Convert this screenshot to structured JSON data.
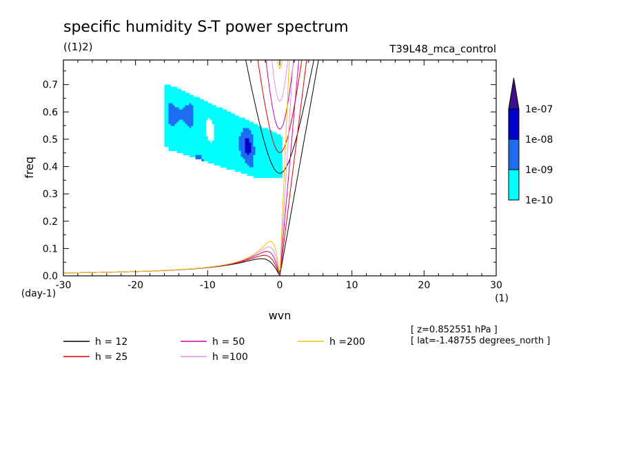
{
  "chart_data": {
    "type": "line",
    "title": "specific humidity S-T power spectrum",
    "subtitle_left": "((1)2)",
    "subtitle_right": "T39L48_mca_control",
    "xlabel": "wvn",
    "ylabel": "freq",
    "x_unit": "(1)",
    "y_unit": "(day-1)",
    "xlim": [
      -30,
      30
    ],
    "ylim": [
      0,
      0.79
    ],
    "x_ticks": [
      -30,
      -20,
      -10,
      0,
      10,
      20,
      30
    ],
    "x_tick_labels": [
      "-30",
      "-20",
      "-10",
      "0",
      "10",
      "20",
      "30"
    ],
    "y_ticks": [
      0,
      0.1,
      0.2,
      0.3,
      0.4,
      0.5,
      0.6,
      0.7
    ],
    "y_tick_labels": [
      "0.0",
      "0.1",
      "0.2",
      "0.3",
      "0.4",
      "0.5",
      "0.6",
      "0.7"
    ],
    "grid": false,
    "series": [
      {
        "name": "h = 12",
        "h": 12,
        "color": "#000000"
      },
      {
        "name": "h = 25",
        "h": 25,
        "color": "#e00000"
      },
      {
        "name": "h = 50",
        "h": 50,
        "color": "#cc00aa"
      },
      {
        "name": "h =100",
        "h": 100,
        "color": "#dd99dd"
      },
      {
        "name": "h =200",
        "h": 200,
        "color": "#f0c000"
      }
    ],
    "colorbar": {
      "labels": [
        "1e-07",
        "1e-08",
        "1e-09",
        "1e-10"
      ],
      "colors": [
        "#1a1a8a",
        "#0000cc",
        "#1e6cf0",
        "#00ffff"
      ]
    },
    "contour_region": {
      "x_range": [
        -16,
        0
      ],
      "y_range": [
        0.36,
        0.7
      ],
      "levels": [
        "1e-10",
        "1e-09",
        "1e-08"
      ]
    }
  },
  "annotations": {
    "z": "[ z=0.852551 hPa ]",
    "lat": "[ lat=-1.48755 degrees_north ]"
  }
}
